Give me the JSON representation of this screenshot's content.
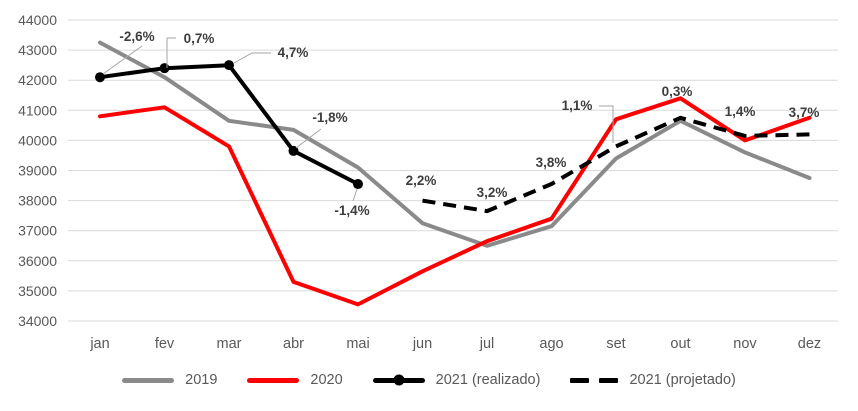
{
  "chart_data": {
    "type": "line",
    "title": "",
    "categories": [
      "jan",
      "fev",
      "mar",
      "abr",
      "mai",
      "jun",
      "jul",
      "ago",
      "set",
      "out",
      "nov",
      "dez"
    ],
    "y_axis": {
      "min": 34000,
      "max": 44000,
      "step": 1000
    },
    "grid": true,
    "legend_position": "bottom",
    "colors": {
      "series_2019": "#8A8A8A",
      "series_2020": "#FF0000",
      "series_2021": "#000000",
      "gridline": "#D9D9D9",
      "axis_text": "#595959",
      "data_label_text": "#3D3D3D",
      "leader_line": "#A6A6A6"
    },
    "series": [
      {
        "name": "2019",
        "color": "#8A8A8A",
        "style": "solid",
        "values": [
          43250,
          42100,
          40650,
          40350,
          39100,
          37250,
          36500,
          37150,
          39400,
          40650,
          39600,
          38750
        ]
      },
      {
        "name": "2020",
        "color": "#FF0000",
        "style": "solid",
        "values": [
          40800,
          41100,
          39800,
          35300,
          34550,
          35650,
          36650,
          37400,
          40700,
          41400,
          40000,
          40750
        ]
      },
      {
        "name": "2021 (realizado)",
        "color": "#000000",
        "style": "solid-markers",
        "values": [
          42100,
          42400,
          42500,
          39650,
          38550,
          null,
          null,
          null,
          null,
          null,
          null,
          null
        ]
      },
      {
        "name": "2021 (projetado)",
        "color": "#000000",
        "style": "dashed",
        "values": [
          null,
          null,
          null,
          null,
          null,
          38000,
          37650,
          38550,
          39800,
          40750,
          40150,
          40200
        ]
      }
    ],
    "point_labels": [
      {
        "text": "-2,6%",
        "category": "jan",
        "series": "2021 (realizado)"
      },
      {
        "text": "0,7%",
        "category": "fev",
        "series": "2021 (realizado)"
      },
      {
        "text": "4,7%",
        "category": "mar",
        "series": "2021 (realizado)"
      },
      {
        "text": "-1,8%",
        "category": "abr",
        "series": "2021 (realizado)"
      },
      {
        "text": "-1,4%",
        "category": "mai",
        "series": "2021 (realizado)"
      },
      {
        "text": "2,2%",
        "category": "jun",
        "series": "2021 (projetado)"
      },
      {
        "text": "3,2%",
        "category": "jul",
        "series": "2021 (projetado)"
      },
      {
        "text": "3,8%",
        "category": "ago",
        "series": "2021 (projetado)"
      },
      {
        "text": "1,1%",
        "category": "set",
        "series": "2021 (projetado)"
      },
      {
        "text": "0,3%",
        "category": "out",
        "series": "2021 (projetado)"
      },
      {
        "text": "1,4%",
        "category": "nov",
        "series": "2021 (projetado)"
      },
      {
        "text": "3,7%",
        "category": "dez",
        "series": "2021 (projetado)"
      }
    ]
  }
}
